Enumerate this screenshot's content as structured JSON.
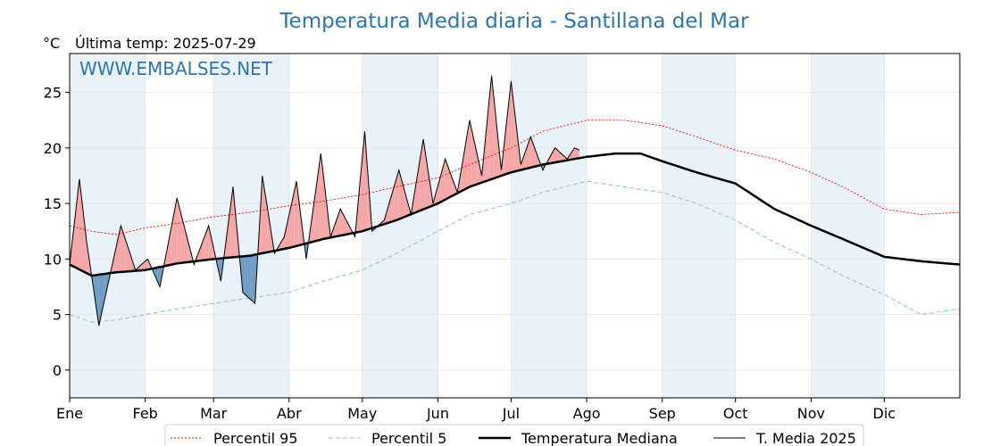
{
  "chart_data": {
    "type": "line",
    "title": "Temperatura Media diaria - Santillana del Mar",
    "unit_label": "°C",
    "subtitle": "Última temp: 2025-07-29",
    "watermark": "WWW.EMBALSES.NET",
    "xlim": [
      1,
      366
    ],
    "ylim": [
      -2.5,
      28.5
    ],
    "yticks": [
      0,
      5,
      10,
      15,
      20,
      25
    ],
    "month_labels": [
      "Ene",
      "Feb",
      "Mar",
      "Abr",
      "May",
      "Jun",
      "Jul",
      "Ago",
      "Sep",
      "Oct",
      "Nov",
      "Dic"
    ],
    "month_start_days": [
      1,
      32,
      60,
      91,
      121,
      152,
      182,
      213,
      244,
      274,
      305,
      335
    ],
    "grid": true,
    "legend_position": "bottom-center",
    "colors": {
      "p95": "#ff0000",
      "p5": "#8fc7db",
      "median": "#000000",
      "current": "#000000",
      "above_fill": "#f4a6a6",
      "below_fill": "#6e9cc4",
      "band_fill": "#e9f1f9",
      "title": "#2e75b0"
    },
    "series": [
      {
        "name": "Percentil 95",
        "x": [
          1,
          10,
          20,
          32,
          45,
          60,
          75,
          91,
          105,
          121,
          135,
          152,
          165,
          182,
          195,
          213,
          228,
          244,
          258,
          274,
          290,
          305,
          318,
          335,
          350,
          366
        ],
        "values": [
          13.0,
          12.5,
          12.2,
          12.8,
          13.2,
          13.8,
          14.2,
          14.8,
          15.2,
          15.8,
          16.5,
          17.3,
          18.5,
          20.0,
          21.5,
          22.5,
          22.5,
          22.0,
          21.0,
          19.8,
          19.0,
          17.8,
          16.5,
          14.5,
          14.0,
          14.2
        ]
      },
      {
        "name": "Percentil 5",
        "x": [
          1,
          10,
          20,
          32,
          45,
          60,
          75,
          91,
          105,
          121,
          135,
          152,
          165,
          182,
          195,
          213,
          228,
          244,
          258,
          274,
          290,
          305,
          318,
          335,
          350,
          366
        ],
        "values": [
          5.0,
          4.3,
          4.5,
          5.0,
          5.5,
          6.0,
          6.5,
          7.0,
          8.0,
          9.0,
          10.5,
          12.5,
          14.0,
          15.0,
          16.0,
          17.0,
          16.5,
          16.0,
          15.0,
          13.5,
          11.5,
          10.0,
          8.5,
          6.8,
          5.0,
          5.5
        ]
      },
      {
        "name": "Temperatura Mediana",
        "x": [
          1,
          10,
          20,
          32,
          45,
          60,
          75,
          91,
          105,
          121,
          135,
          152,
          165,
          182,
          195,
          213,
          225,
          235,
          244,
          258,
          274,
          290,
          305,
          318,
          335,
          350,
          366
        ],
        "values": [
          9.5,
          8.5,
          8.8,
          9.0,
          9.6,
          10.0,
          10.3,
          11.0,
          11.8,
          12.5,
          13.5,
          15.0,
          16.5,
          17.8,
          18.5,
          19.2,
          19.5,
          19.5,
          18.8,
          17.8,
          16.8,
          14.5,
          13.0,
          11.8,
          10.2,
          9.8,
          9.5
        ]
      },
      {
        "name": "T. Media 2025",
        "x": [
          1,
          5,
          8,
          13,
          18,
          22,
          28,
          33,
          38,
          45,
          52,
          58,
          63,
          68,
          72,
          77,
          80,
          85,
          89,
          94,
          98,
          104,
          108,
          112,
          118,
          122,
          125,
          130,
          136,
          141,
          146,
          150,
          155,
          160,
          165,
          170,
          174,
          178,
          182,
          186,
          190,
          195,
          200,
          205,
          208,
          210
        ],
        "values": [
          9.5,
          17.2,
          11.5,
          4.0,
          9.0,
          13.0,
          9.0,
          10.0,
          7.5,
          15.5,
          9.5,
          13.0,
          8.0,
          16.5,
          7.0,
          6.0,
          17.5,
          10.5,
          12.0,
          17.0,
          10.0,
          19.5,
          12.0,
          14.5,
          12.0,
          21.5,
          12.5,
          13.5,
          18.0,
          14.0,
          20.8,
          15.0,
          19.0,
          16.0,
          22.5,
          17.5,
          26.5,
          18.0,
          26.0,
          18.5,
          21.0,
          18.0,
          20.0,
          19.0,
          20.0,
          19.8
        ]
      }
    ]
  },
  "legend": [
    {
      "label": "Percentil 95",
      "style": "p95"
    },
    {
      "label": "Percentil 5",
      "style": "p5"
    },
    {
      "label": "Temperatura Mediana",
      "style": "median"
    },
    {
      "label": "T. Media 2025",
      "style": "current"
    }
  ]
}
